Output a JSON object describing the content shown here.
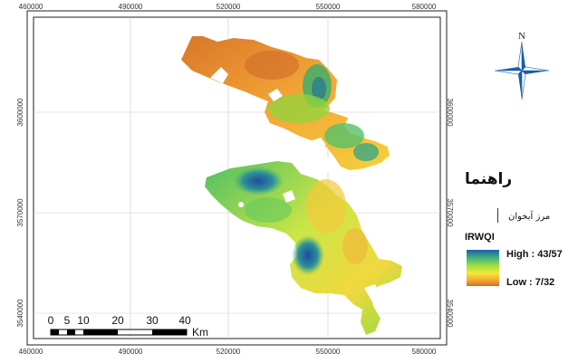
{
  "map": {
    "x_ticks": [
      "460000",
      "490000",
      "520000",
      "550000",
      "580000"
    ],
    "y_ticks": [
      "3600000",
      "3570000",
      "3540000"
    ],
    "scale_bar": {
      "labels": [
        "0",
        "5",
        "10",
        "20",
        "30",
        "40"
      ],
      "unit": "Km"
    },
    "north_label": "N"
  },
  "legend": {
    "title": "راهنما",
    "boundary_label": "مرز آبخوان",
    "index_name": "IRWQI",
    "high_label": "High : 43/57",
    "low_label": "Low : 7/32",
    "colors": [
      "#1b5fa8",
      "#3fb27a",
      "#a7e03e",
      "#f2e83d",
      "#f4a531",
      "#d96a27"
    ]
  }
}
